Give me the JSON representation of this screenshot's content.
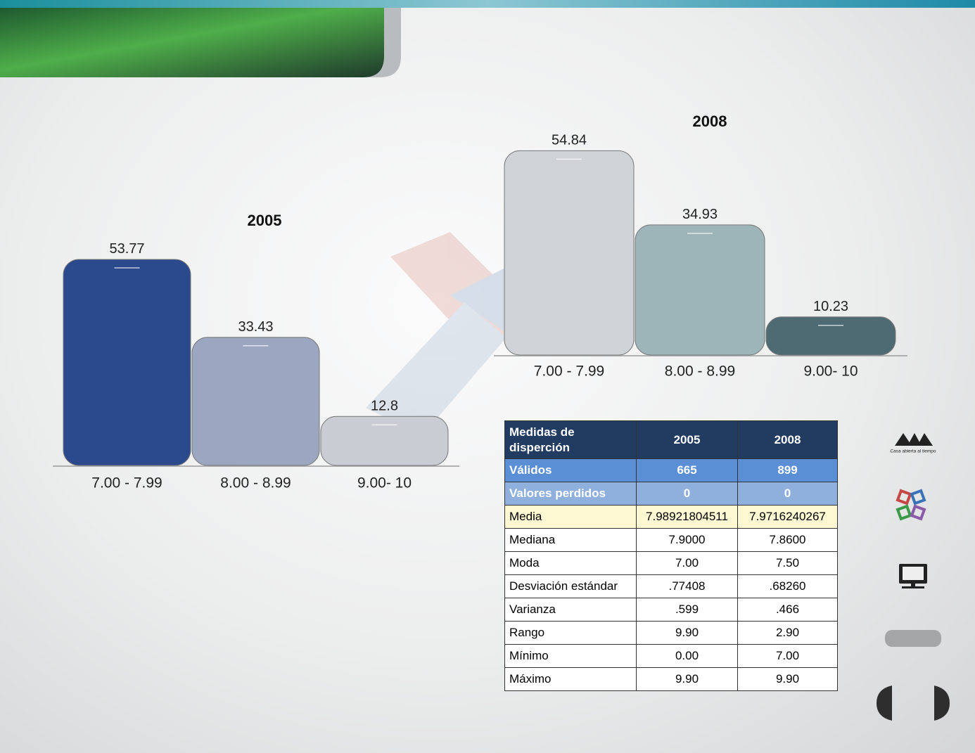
{
  "chart_data": [
    {
      "type": "bar",
      "title": "2005",
      "categories": [
        "7.00 - 7.99",
        "8.00 - 8.99",
        "9.00- 10"
      ],
      "values": [
        53.77,
        33.43,
        12.8
      ],
      "colors": [
        "#2b4a8e",
        "#9ba6c1",
        "#c9ccd3"
      ]
    },
    {
      "type": "bar",
      "title": "2008",
      "categories": [
        "7.00 - 7.99",
        "8.00 - 8.99",
        "9.00- 10"
      ],
      "values": [
        54.84,
        34.93,
        10.23
      ],
      "colors": [
        "#cfd3d7",
        "#9db4b9",
        "#4e6b73"
      ]
    }
  ],
  "table": {
    "header": [
      "Medidas de disperción",
      "2005",
      "2008"
    ],
    "rows": [
      [
        "Válidos",
        "665",
        "899"
      ],
      [
        "Valores perdidos",
        "0",
        "0"
      ],
      [
        "Media",
        "7.98921804511",
        "7.9716240267"
      ],
      [
        "Mediana",
        "7.9000",
        "7.8600"
      ],
      [
        "Moda",
        "7.00",
        "7.50"
      ],
      [
        "Desviación estándar",
        ".77408",
        ".68260"
      ],
      [
        "Varianza",
        ".599",
        ".466"
      ],
      [
        "Rango",
        "9.90",
        "2.90"
      ],
      [
        "Mínimo",
        "0.00",
        "7.00"
      ],
      [
        "Máximo",
        "9.90",
        "9.90"
      ]
    ]
  },
  "sidebar": {
    "logo_text": "Casa abierta al tiempo"
  }
}
